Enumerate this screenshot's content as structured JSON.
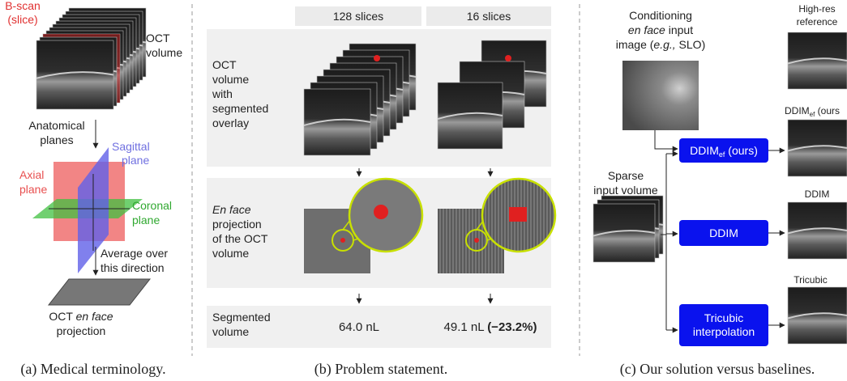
{
  "panel_a": {
    "bscan": [
      "B-scan",
      "(slice)"
    ],
    "oct_volume": [
      "OCT",
      "volume"
    ],
    "anatomical_planes": [
      "Anatomical",
      "planes"
    ],
    "sagittal": [
      "Sagittal",
      "plane"
    ],
    "axial": [
      "Axial",
      "plane"
    ],
    "coronal": [
      "Coronal",
      "plane"
    ],
    "average": [
      "Average over",
      "this direction"
    ],
    "en_face": {
      "prefix": "OCT ",
      "italic": "en face",
      "line2": "projection"
    },
    "caption": "(a) Medical terminology."
  },
  "panel_b": {
    "columns": [
      "128 slices",
      "16 slices"
    ],
    "row_volume": [
      "OCT",
      "volume",
      "with",
      "segmented",
      "overlay"
    ],
    "row_en_face": {
      "italic": "En face",
      "lines": [
        "projection",
        "of the OCT",
        "volume"
      ]
    },
    "row_segmented": {
      "label": [
        "Segmented",
        "volume"
      ],
      "values": [
        "64.0 nL",
        "49.1 nL"
      ],
      "change": "(−23.2%)"
    },
    "caption": "(b) Problem statement."
  },
  "panel_c": {
    "conditioning": {
      "line1": "Conditioning",
      "line2_italic": "en face",
      "line2": " input",
      "line3_a": "image (",
      "line3_italic": "e.g.,",
      "line3_b": " SLO)"
    },
    "sparse": [
      "Sparse",
      "input volume"
    ],
    "methods": {
      "ddim_ef": {
        "name": "DDIM",
        "sub": "ef",
        "suffix": " (ours)"
      },
      "ddim": "DDIM",
      "tricubic": [
        "Tricubic",
        "interpolation"
      ]
    },
    "outputs": {
      "reference": [
        "High-res",
        "reference"
      ],
      "ddim_ef": {
        "name": "DDIM",
        "sub": "ef",
        "suffix": " (ours"
      },
      "ddim": "DDIM",
      "tricubic": "Tricubic"
    },
    "caption": "(c) Our solution versus baselines."
  }
}
